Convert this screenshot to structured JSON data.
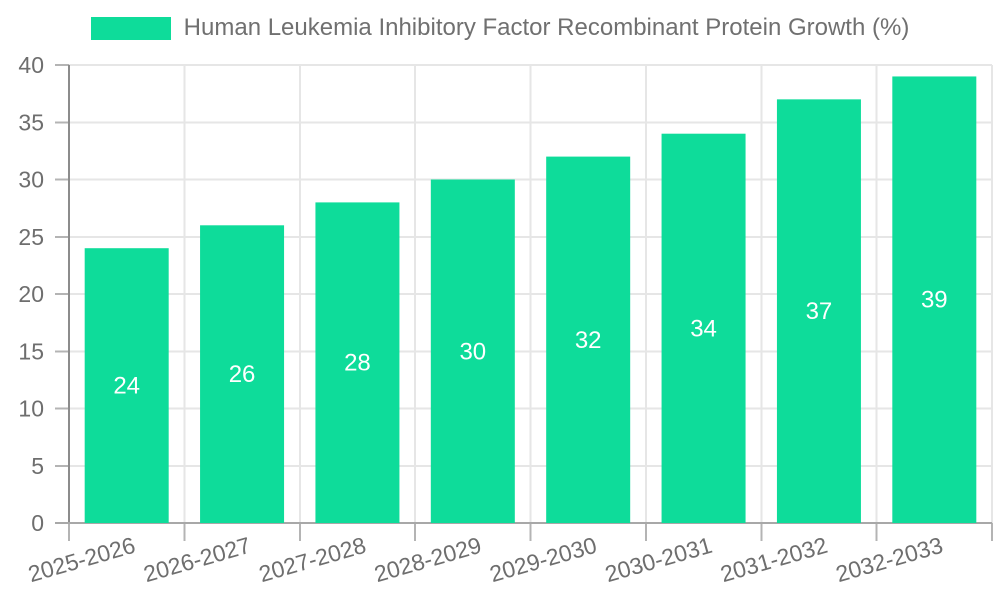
{
  "chart_data": {
    "type": "bar",
    "title": "Human Leukemia Inhibitory Factor Recombinant Protein Growth (%)",
    "legend": {
      "label": "Human Leukemia Inhibitory Factor Recombinant Protein Growth (%)",
      "position": "top"
    },
    "categories": [
      "2025-2026",
      "2026-2027",
      "2027-2028",
      "2028-2029",
      "2029-2030",
      "2030-2031",
      "2031-2032",
      "2032-2033"
    ],
    "values": [
      24,
      26,
      28,
      30,
      32,
      34,
      37,
      39
    ],
    "xlabel": "",
    "ylabel": "",
    "ylim": [
      0,
      40
    ],
    "yticks": [
      0,
      5,
      10,
      15,
      20,
      25,
      30,
      35,
      40
    ],
    "grid": true,
    "bar_value_labels_shown": true,
    "colors": {
      "bar": "#0edc9a",
      "value_label": "#ffffff",
      "axis_text": "#6e6e6e",
      "legend_text": "#707070",
      "gridline": "#e6e6e6",
      "y_axis_line": "#8c8c8c",
      "x_axis_line": "#a8a8a8",
      "tick": "#b4b4b4",
      "background": "#ffffff"
    }
  }
}
